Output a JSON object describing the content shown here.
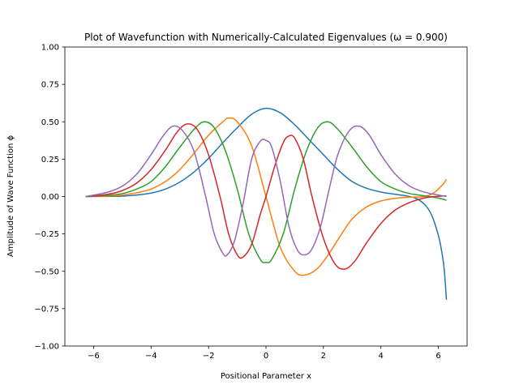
{
  "chart_data": {
    "type": "line",
    "title": "Plot of Wavefunction with Numerically-Calculated Eigenvalues (ω = 0.900)",
    "xlabel": "Positional Parameter x",
    "ylabel": "Amplitude of Wave Function ϕ",
    "xlim": [
      -7,
      7
    ],
    "ylim": [
      -1.0,
      1.0
    ],
    "xticks": [
      -6,
      -4,
      -2,
      0,
      2,
      4,
      6
    ],
    "xtick_labels": [
      "−6",
      "−4",
      "−2",
      "0",
      "2",
      "4",
      "6"
    ],
    "yticks": [
      -1.0,
      -0.75,
      -0.5,
      -0.25,
      0.0,
      0.25,
      0.5,
      0.75,
      1.0
    ],
    "ytick_labels": [
      "−1.00",
      "−0.75",
      "−0.50",
      "−0.25",
      "0.00",
      "0.25",
      "0.50",
      "0.75",
      "1.00"
    ],
    "grid": false,
    "legend": "none",
    "series": [
      {
        "color": "#1f77b4",
        "points": [
          [
            -6.28,
            0.0
          ],
          [
            -5.5,
            0.001
          ],
          [
            -5.0,
            0.003
          ],
          [
            -4.5,
            0.01
          ],
          [
            -4.0,
            0.023
          ],
          [
            -3.5,
            0.05
          ],
          [
            -3.0,
            0.096
          ],
          [
            -2.5,
            0.165
          ],
          [
            -2.0,
            0.255
          ],
          [
            -1.5,
            0.36
          ],
          [
            -1.0,
            0.46
          ],
          [
            -0.5,
            0.55
          ],
          [
            0.0,
            0.59
          ],
          [
            0.5,
            0.56
          ],
          [
            1.0,
            0.48
          ],
          [
            1.5,
            0.38
          ],
          [
            2.0,
            0.28
          ],
          [
            2.5,
            0.18
          ],
          [
            3.0,
            0.1
          ],
          [
            3.5,
            0.055
          ],
          [
            4.0,
            0.03
          ],
          [
            4.5,
            0.015
          ],
          [
            5.0,
            0.0
          ],
          [
            5.3,
            -0.02
          ],
          [
            5.6,
            -0.07
          ],
          [
            5.8,
            -0.14
          ],
          [
            6.0,
            -0.26
          ],
          [
            6.1,
            -0.35
          ],
          [
            6.2,
            -0.48
          ],
          [
            6.28,
            -0.69
          ]
        ]
      },
      {
        "color": "#ff7f0e",
        "points": [
          [
            -6.28,
            0.0
          ],
          [
            -5.5,
            0.003
          ],
          [
            -5.0,
            0.01
          ],
          [
            -4.5,
            0.025
          ],
          [
            -4.0,
            0.05
          ],
          [
            -3.5,
            0.1
          ],
          [
            -3.0,
            0.18
          ],
          [
            -2.5,
            0.29
          ],
          [
            -2.0,
            0.41
          ],
          [
            -1.5,
            0.5
          ],
          [
            -1.3,
            0.525
          ],
          [
            -1.0,
            0.5
          ],
          [
            -0.5,
            0.34
          ],
          [
            0.0,
            0.0
          ],
          [
            0.5,
            -0.34
          ],
          [
            1.0,
            -0.5
          ],
          [
            1.35,
            -0.525
          ],
          [
            1.8,
            -0.48
          ],
          [
            2.2,
            -0.38
          ],
          [
            2.6,
            -0.26
          ],
          [
            3.0,
            -0.15
          ],
          [
            3.5,
            -0.07
          ],
          [
            4.0,
            -0.03
          ],
          [
            4.5,
            -0.012
          ],
          [
            5.0,
            -0.005
          ],
          [
            5.5,
            0.0
          ],
          [
            5.8,
            0.02
          ],
          [
            6.0,
            0.05
          ],
          [
            6.2,
            0.09
          ],
          [
            6.28,
            0.115
          ]
        ]
      },
      {
        "color": "#2ca02c",
        "points": [
          [
            -6.28,
            0.0
          ],
          [
            -5.5,
            0.008
          ],
          [
            -5.0,
            0.02
          ],
          [
            -4.5,
            0.05
          ],
          [
            -4.0,
            0.1
          ],
          [
            -3.5,
            0.2
          ],
          [
            -3.0,
            0.33
          ],
          [
            -2.5,
            0.45
          ],
          [
            -2.15,
            0.5
          ],
          [
            -1.8,
            0.46
          ],
          [
            -1.4,
            0.3
          ],
          [
            -1.0,
            0.05
          ],
          [
            -0.6,
            -0.25
          ],
          [
            -0.2,
            -0.42
          ],
          [
            0.0,
            -0.44
          ],
          [
            0.2,
            -0.42
          ],
          [
            0.6,
            -0.25
          ],
          [
            1.0,
            0.05
          ],
          [
            1.4,
            0.3
          ],
          [
            1.8,
            0.46
          ],
          [
            2.15,
            0.5
          ],
          [
            2.5,
            0.45
          ],
          [
            3.0,
            0.33
          ],
          [
            3.5,
            0.2
          ],
          [
            4.0,
            0.1
          ],
          [
            4.5,
            0.05
          ],
          [
            5.0,
            0.02
          ],
          [
            5.5,
            0.005
          ],
          [
            6.0,
            -0.01
          ],
          [
            6.28,
            -0.025
          ]
        ]
      },
      {
        "color": "#d62728",
        "points": [
          [
            -6.28,
            0.0
          ],
          [
            -5.5,
            0.015
          ],
          [
            -5.0,
            0.04
          ],
          [
            -4.5,
            0.09
          ],
          [
            -4.0,
            0.18
          ],
          [
            -3.5,
            0.31
          ],
          [
            -3.1,
            0.43
          ],
          [
            -2.75,
            0.485
          ],
          [
            -2.4,
            0.45
          ],
          [
            -2.0,
            0.28
          ],
          [
            -1.6,
            0.0
          ],
          [
            -1.3,
            -0.25
          ],
          [
            -1.0,
            -0.39
          ],
          [
            -0.8,
            -0.405
          ],
          [
            -0.5,
            -0.32
          ],
          [
            -0.2,
            -0.12
          ],
          [
            0.0,
            0.0
          ],
          [
            0.3,
            0.2
          ],
          [
            0.6,
            0.36
          ],
          [
            0.8,
            0.405
          ],
          [
            1.0,
            0.39
          ],
          [
            1.3,
            0.25
          ],
          [
            1.6,
            0.0
          ],
          [
            2.0,
            -0.28
          ],
          [
            2.4,
            -0.45
          ],
          [
            2.75,
            -0.485
          ],
          [
            3.1,
            -0.43
          ],
          [
            3.5,
            -0.31
          ],
          [
            4.0,
            -0.18
          ],
          [
            4.5,
            -0.09
          ],
          [
            5.0,
            -0.04
          ],
          [
            5.5,
            -0.01
          ],
          [
            5.9,
            0.0
          ],
          [
            6.28,
            0.005
          ]
        ]
      },
      {
        "color": "#9467bd",
        "points": [
          [
            -6.28,
            0.0
          ],
          [
            -5.5,
            0.03
          ],
          [
            -5.0,
            0.07
          ],
          [
            -4.5,
            0.15
          ],
          [
            -4.0,
            0.28
          ],
          [
            -3.6,
            0.4
          ],
          [
            -3.25,
            0.47
          ],
          [
            -2.9,
            0.44
          ],
          [
            -2.5,
            0.3
          ],
          [
            -2.1,
            0.0
          ],
          [
            -1.8,
            -0.25
          ],
          [
            -1.5,
            -0.38
          ],
          [
            -1.35,
            -0.39
          ],
          [
            -1.1,
            -0.3
          ],
          [
            -0.8,
            -0.05
          ],
          [
            -0.5,
            0.25
          ],
          [
            -0.2,
            0.37
          ],
          [
            0.0,
            0.375
          ],
          [
            0.2,
            0.33
          ],
          [
            0.5,
            0.1
          ],
          [
            0.8,
            -0.2
          ],
          [
            1.1,
            -0.36
          ],
          [
            1.35,
            -0.39
          ],
          [
            1.6,
            -0.35
          ],
          [
            1.9,
            -0.2
          ],
          [
            2.2,
            0.05
          ],
          [
            2.5,
            0.28
          ],
          [
            2.9,
            0.44
          ],
          [
            3.25,
            0.47
          ],
          [
            3.6,
            0.41
          ],
          [
            4.0,
            0.28
          ],
          [
            4.5,
            0.15
          ],
          [
            5.0,
            0.07
          ],
          [
            5.5,
            0.03
          ],
          [
            6.0,
            0.01
          ],
          [
            6.28,
            0.0
          ]
        ]
      }
    ]
  }
}
